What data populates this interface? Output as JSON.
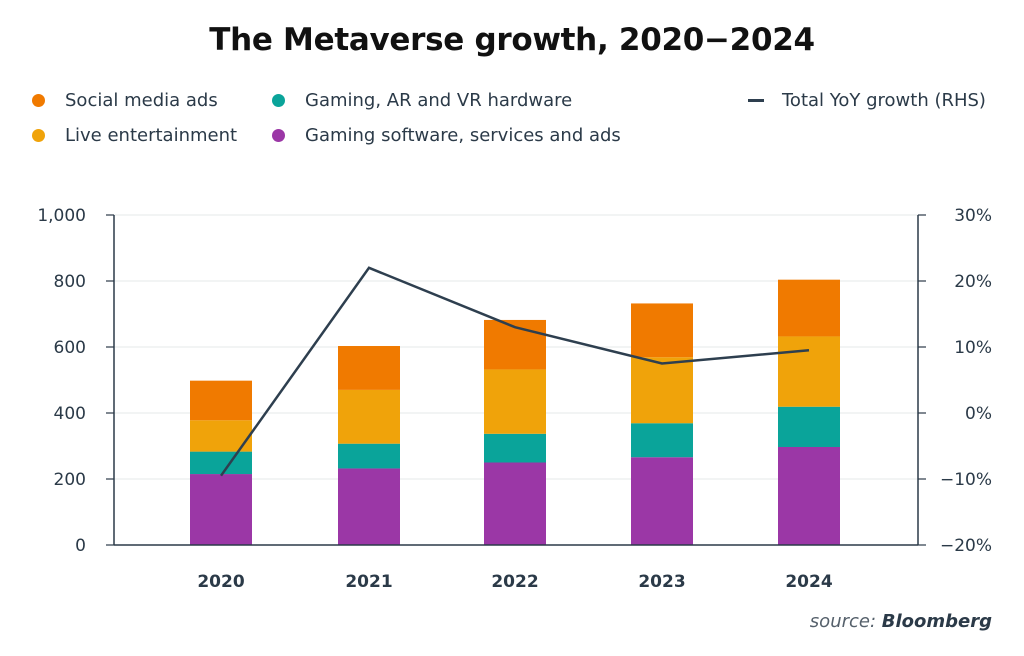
{
  "chart_data": {
    "type": "bar",
    "title": "The Metaverse growth, 2020−2024",
    "categories": [
      "2020",
      "2021",
      "2022",
      "2023",
      "2024"
    ],
    "stacked": true,
    "series": [
      {
        "name": "Gaming software, services and ads",
        "color": "#9b37a6",
        "values": [
          215,
          232,
          250,
          266,
          297
        ]
      },
      {
        "name": "Gaming, AR and VR hardware",
        "color": "#0aa49a",
        "values": [
          68,
          75,
          87,
          103,
          122
        ]
      },
      {
        "name": "Live entertainment",
        "color": "#f0a30a",
        "values": [
          95,
          163,
          195,
          200,
          213
        ]
      },
      {
        "name": "Social media ads",
        "color": "#f07a00",
        "values": [
          120,
          133,
          150,
          163,
          172
        ]
      }
    ],
    "line_series": {
      "name": "Total YoY growth (RHS)",
      "color": "#2e3f4f",
      "values": [
        -9.5,
        22,
        13,
        7.5,
        9.5
      ]
    },
    "y_left": {
      "min": 0,
      "max": 1000,
      "ticks": [
        "0",
        "200",
        "400",
        "600",
        "800",
        "1,000"
      ]
    },
    "y_right": {
      "min": -20,
      "max": 30,
      "ticks": [
        "−20%",
        "−10%",
        "0%",
        "10%",
        "20%",
        "30%"
      ]
    },
    "legend_position": "top",
    "grid": true
  },
  "legend": {
    "items": [
      {
        "label": "Social media ads",
        "color": "#f07a00",
        "kind": "dot"
      },
      {
        "label": "Gaming, AR and VR hardware",
        "color": "#0aa49a",
        "kind": "dot"
      },
      {
        "label": "Total YoY growth (RHS)",
        "color": "#2e3f4f",
        "kind": "line"
      },
      {
        "label": "Live entertainment",
        "color": "#f0a30a",
        "kind": "dot"
      },
      {
        "label": "Gaming software, services and ads",
        "color": "#9b37a6",
        "kind": "dot"
      }
    ]
  },
  "source": {
    "label": "source:",
    "name": "Bloomberg"
  }
}
